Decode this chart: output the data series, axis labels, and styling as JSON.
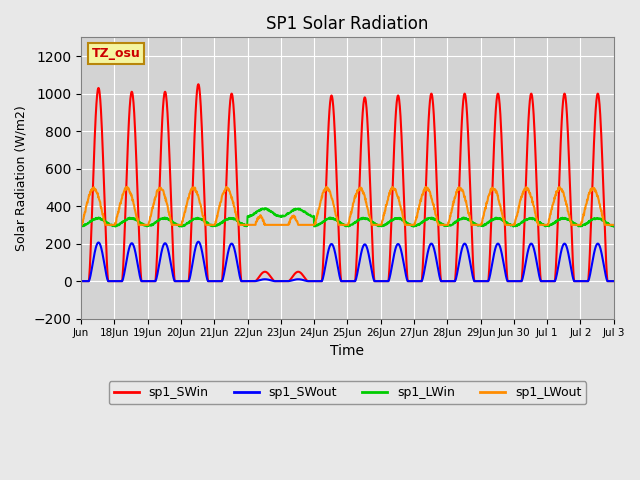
{
  "title": "SP1 Solar Radiation",
  "xlabel": "Time",
  "ylabel": "Solar Radiation (W/m2)",
  "ylim": [
    -200,
    1300
  ],
  "yticks": [
    -200,
    0,
    200,
    400,
    600,
    800,
    1000,
    1200
  ],
  "background_color": "#e8e8e8",
  "plot_bg_color": "#d3d3d3",
  "tz_label": "TZ_osu",
  "tz_box_color": "#f5f5a0",
  "tz_border_color": "#b8860b",
  "legend_entries": [
    "sp1_SWin",
    "sp1_SWout",
    "sp1_LWin",
    "sp1_LWout"
  ],
  "legend_colors": [
    "#ff0000",
    "#0000ff",
    "#00cc00",
    "#ff8c00"
  ],
  "line_width": 1.5,
  "num_days": 16,
  "tick_labels": [
    "Jun",
    "18Jun",
    "19Jun",
    "20Jun",
    "21Jun",
    "22Jun",
    "23Jun",
    "24Jun",
    "25Jun",
    "26Jun",
    "27Jun",
    "28Jun",
    "29Jun",
    "Jun 30",
    "Jul 1",
    "Jul 2",
    "Jul 3"
  ]
}
